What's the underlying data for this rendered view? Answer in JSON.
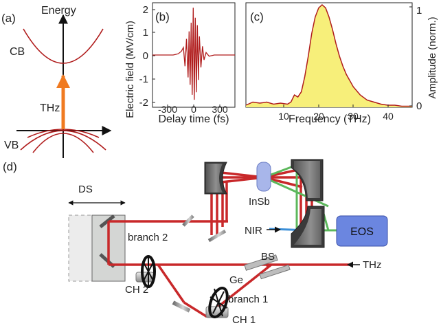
{
  "panel_a": {
    "label": "(a)",
    "axis_label": "Energy",
    "cb_label": "CB",
    "vb_label": "VB",
    "excitation_label": "THz"
  },
  "panel_b": {
    "label": "(b)",
    "ylabel": "Electric field (MV/cm)",
    "xlabel": "Delay time (fs)",
    "xticks": [
      "-300",
      "0",
      "300"
    ],
    "yticks": [
      "2",
      "1",
      "0",
      "-1",
      "-2"
    ]
  },
  "panel_c": {
    "label": "(c)",
    "ylabel": "Amplitude (norm.)",
    "xlabel": "Frequency (THz)",
    "xticks": [
      "10",
      "20",
      "30",
      "40"
    ],
    "yticks": [
      "1",
      "0"
    ]
  },
  "panel_d": {
    "label": "(d)",
    "labels": {
      "ds": "DS",
      "branch2": "branch 2",
      "branch1": "branch 1",
      "ch2": "CH 2",
      "ch1": "CH 1",
      "insb": "InSb",
      "nir": "NIR",
      "eos": "EOS",
      "bs": "BS",
      "ge": "Ge",
      "thz": "THz"
    }
  },
  "colors": {
    "curve": "#b01c1c",
    "beam_red": "#c8282a",
    "beam_green": "#5cb85c",
    "beam_blue": "#3a8fd8",
    "fill_yellow": "#f7ef7a",
    "eos_blue": "#6b86e0",
    "insb_blue": "#a8b6ea",
    "arrow_orange": "#f07a20"
  },
  "chart_data": [
    {
      "type": "line",
      "ylabel": "Electric field (MV/cm)",
      "xlabel": "Delay time (fs)",
      "xlim": [
        -400,
        400
      ],
      "ylim": [
        -2.1,
        2.1
      ],
      "x": [
        -400,
        -300,
        -200,
        -150,
        -120,
        -100,
        -85,
        -70,
        -55,
        -45,
        -35,
        -25,
        -15,
        -5,
        0,
        5,
        15,
        25,
        35,
        45,
        55,
        70,
        85,
        100,
        120,
        150,
        200,
        300,
        400
      ],
      "y": [
        0,
        0,
        0,
        0.05,
        0.15,
        0.3,
        -0.45,
        0.65,
        -0.9,
        0.95,
        -1.2,
        1.3,
        -1.6,
        1.9,
        0.3,
        -1.8,
        1.5,
        -1.5,
        1.2,
        -1.0,
        0.75,
        -0.5,
        0.35,
        -0.2,
        0.1,
        -0.05,
        0,
        0,
        0
      ]
    },
    {
      "type": "area",
      "ylabel": "Amplitude (norm.)",
      "xlabel": "Frequency (THz)",
      "xlim": [
        1,
        49
      ],
      "ylim": [
        0,
        1.02
      ],
      "x": [
        1,
        3,
        5,
        7,
        9,
        11,
        13,
        14,
        15,
        16,
        17,
        18,
        19,
        20,
        21,
        22,
        23,
        24,
        25,
        26,
        27,
        28,
        29,
        30,
        32,
        34,
        36,
        38,
        40,
        42,
        44,
        46,
        48,
        49
      ],
      "y": [
        0.02,
        0.05,
        0.04,
        0.05,
        0.03,
        0.04,
        0.03,
        0.05,
        0.12,
        0.1,
        0.15,
        0.3,
        0.5,
        0.72,
        0.88,
        0.97,
        1.0,
        0.97,
        0.88,
        0.76,
        0.62,
        0.5,
        0.4,
        0.32,
        0.2,
        0.12,
        0.07,
        0.05,
        0.03,
        0.02,
        0.02,
        0.01,
        0.01,
        0.01
      ]
    }
  ]
}
